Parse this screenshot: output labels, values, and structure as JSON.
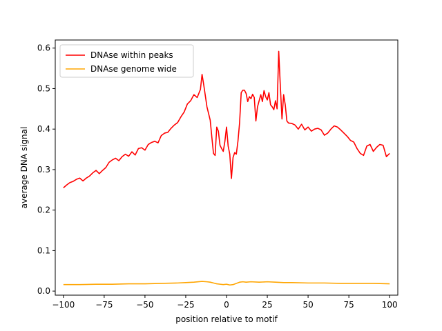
{
  "chart_data": {
    "type": "line",
    "title": "",
    "xlabel": "position relative to motif",
    "ylabel": "average DNA signal",
    "xlim": [
      -105,
      105
    ],
    "ylim": [
      -0.01,
      0.62
    ],
    "xticks": [
      -100,
      -75,
      -50,
      -25,
      0,
      25,
      50,
      75,
      100
    ],
    "xtick_labels": [
      "−100",
      "−75",
      "−50",
      "−25",
      "0",
      "25",
      "50",
      "75",
      "100"
    ],
    "yticks": [
      0.0,
      0.1,
      0.2,
      0.3,
      0.4,
      0.5,
      0.6
    ],
    "ytick_labels": [
      "0.0",
      "0.1",
      "0.2",
      "0.3",
      "0.4",
      "0.5",
      "0.6"
    ],
    "grid": false,
    "legend_position": "top-left",
    "series": [
      {
        "name": "DNAse within peaks",
        "color": "#ff0000",
        "points": [
          [
            -100,
            0.255
          ],
          [
            -98,
            0.262
          ],
          [
            -96,
            0.268
          ],
          [
            -94,
            0.271
          ],
          [
            -92,
            0.276
          ],
          [
            -90,
            0.279
          ],
          [
            -88,
            0.272
          ],
          [
            -86,
            0.279
          ],
          [
            -84,
            0.284
          ],
          [
            -82,
            0.292
          ],
          [
            -80,
            0.298
          ],
          [
            -78,
            0.29
          ],
          [
            -76,
            0.298
          ],
          [
            -74,
            0.305
          ],
          [
            -72,
            0.318
          ],
          [
            -70,
            0.324
          ],
          [
            -68,
            0.328
          ],
          [
            -66,
            0.322
          ],
          [
            -64,
            0.332
          ],
          [
            -62,
            0.338
          ],
          [
            -60,
            0.333
          ],
          [
            -58,
            0.344
          ],
          [
            -56,
            0.336
          ],
          [
            -54,
            0.352
          ],
          [
            -52,
            0.354
          ],
          [
            -50,
            0.348
          ],
          [
            -48,
            0.362
          ],
          [
            -46,
            0.367
          ],
          [
            -44,
            0.37
          ],
          [
            -42,
            0.366
          ],
          [
            -40,
            0.384
          ],
          [
            -38,
            0.39
          ],
          [
            -36,
            0.392
          ],
          [
            -34,
            0.402
          ],
          [
            -32,
            0.41
          ],
          [
            -30,
            0.416
          ],
          [
            -28,
            0.43
          ],
          [
            -26,
            0.442
          ],
          [
            -24,
            0.462
          ],
          [
            -22,
            0.47
          ],
          [
            -20,
            0.485
          ],
          [
            -18,
            0.478
          ],
          [
            -16,
            0.498
          ],
          [
            -15,
            0.535
          ],
          [
            -14,
            0.51
          ],
          [
            -12,
            0.455
          ],
          [
            -10,
            0.422
          ],
          [
            -9,
            0.38
          ],
          [
            -8,
            0.34
          ],
          [
            -7,
            0.335
          ],
          [
            -6,
            0.405
          ],
          [
            -5,
            0.395
          ],
          [
            -4,
            0.36
          ],
          [
            -3,
            0.352
          ],
          [
            -2,
            0.345
          ],
          [
            -1,
            0.37
          ],
          [
            0,
            0.405
          ],
          [
            1,
            0.358
          ],
          [
            2,
            0.338
          ],
          [
            3,
            0.278
          ],
          [
            4,
            0.33
          ],
          [
            5,
            0.342
          ],
          [
            6,
            0.338
          ],
          [
            7,
            0.37
          ],
          [
            8,
            0.415
          ],
          [
            9,
            0.49
          ],
          [
            10,
            0.496
          ],
          [
            11,
            0.496
          ],
          [
            12,
            0.488
          ],
          [
            13,
            0.468
          ],
          [
            14,
            0.48
          ],
          [
            15,
            0.475
          ],
          [
            16,
            0.486
          ],
          [
            17,
            0.478
          ],
          [
            18,
            0.42
          ],
          [
            19,
            0.455
          ],
          [
            20,
            0.47
          ],
          [
            21,
            0.485
          ],
          [
            22,
            0.468
          ],
          [
            23,
            0.495
          ],
          [
            24,
            0.48
          ],
          [
            25,
            0.472
          ],
          [
            26,
            0.49
          ],
          [
            27,
            0.46
          ],
          [
            28,
            0.455
          ],
          [
            29,
            0.448
          ],
          [
            30,
            0.47
          ],
          [
            31,
            0.45
          ],
          [
            32,
            0.592
          ],
          [
            33,
            0.505
          ],
          [
            34,
            0.425
          ],
          [
            35,
            0.485
          ],
          [
            36,
            0.46
          ],
          [
            37,
            0.42
          ],
          [
            38,
            0.415
          ],
          [
            40,
            0.414
          ],
          [
            42,
            0.41
          ],
          [
            44,
            0.4
          ],
          [
            46,
            0.412
          ],
          [
            48,
            0.398
          ],
          [
            50,
            0.405
          ],
          [
            52,
            0.395
          ],
          [
            54,
            0.4
          ],
          [
            56,
            0.402
          ],
          [
            58,
            0.398
          ],
          [
            60,
            0.385
          ],
          [
            62,
            0.39
          ],
          [
            64,
            0.4
          ],
          [
            66,
            0.408
          ],
          [
            68,
            0.405
          ],
          [
            70,
            0.398
          ],
          [
            72,
            0.39
          ],
          [
            74,
            0.382
          ],
          [
            76,
            0.372
          ],
          [
            78,
            0.368
          ],
          [
            80,
            0.352
          ],
          [
            82,
            0.34
          ],
          [
            84,
            0.335
          ],
          [
            86,
            0.358
          ],
          [
            88,
            0.362
          ],
          [
            90,
            0.345
          ],
          [
            92,
            0.355
          ],
          [
            94,
            0.362
          ],
          [
            96,
            0.36
          ],
          [
            98,
            0.332
          ],
          [
            100,
            0.34
          ]
        ]
      },
      {
        "name": "DNAse genome wide",
        "color": "#ffa500",
        "points": [
          [
            -100,
            0.016
          ],
          [
            -90,
            0.016
          ],
          [
            -80,
            0.017
          ],
          [
            -70,
            0.017
          ],
          [
            -60,
            0.018
          ],
          [
            -50,
            0.018
          ],
          [
            -40,
            0.019
          ],
          [
            -30,
            0.02
          ],
          [
            -25,
            0.021
          ],
          [
            -20,
            0.022
          ],
          [
            -15,
            0.024
          ],
          [
            -12,
            0.023
          ],
          [
            -10,
            0.022
          ],
          [
            -8,
            0.02
          ],
          [
            -6,
            0.018
          ],
          [
            -4,
            0.017
          ],
          [
            -2,
            0.016
          ],
          [
            0,
            0.017
          ],
          [
            2,
            0.015
          ],
          [
            4,
            0.016
          ],
          [
            6,
            0.019
          ],
          [
            8,
            0.022
          ],
          [
            10,
            0.023
          ],
          [
            12,
            0.022
          ],
          [
            15,
            0.023
          ],
          [
            20,
            0.022
          ],
          [
            25,
            0.023
          ],
          [
            30,
            0.022
          ],
          [
            35,
            0.021
          ],
          [
            40,
            0.021
          ],
          [
            50,
            0.02
          ],
          [
            60,
            0.02
          ],
          [
            70,
            0.019
          ],
          [
            80,
            0.019
          ],
          [
            90,
            0.019
          ],
          [
            100,
            0.018
          ]
        ]
      }
    ]
  }
}
